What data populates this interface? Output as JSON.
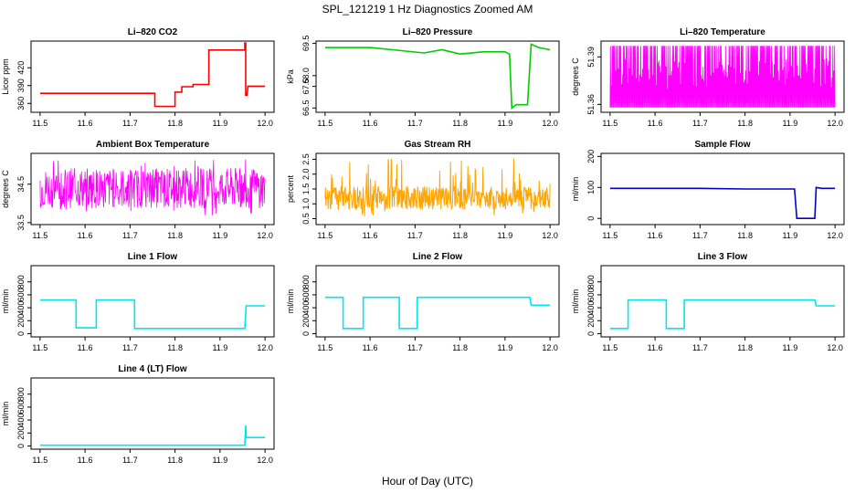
{
  "figure": {
    "title": "SPL_121219  1 Hz Diagnostics Zoomed AM",
    "xlabel": "Hour of Day (UTC)"
  },
  "chart_data": [
    {
      "type": "line",
      "title": "Li–820 CO2",
      "ylabel": "Licor ppm",
      "color": "#ff0000",
      "xlim": [
        11.48,
        12.02
      ],
      "ylim": [
        345,
        465
      ],
      "x_ticks": [
        "11.5",
        "11.6",
        "11.7",
        "11.8",
        "11.9",
        "12.0"
      ],
      "y_ticks": [
        "360",
        "390",
        "420"
      ],
      "points": [
        [
          11.5,
          377
        ],
        [
          11.755,
          377
        ],
        [
          11.755,
          355
        ],
        [
          11.8,
          355
        ],
        [
          11.8,
          379
        ],
        [
          11.815,
          379
        ],
        [
          11.815,
          388
        ],
        [
          11.84,
          388
        ],
        [
          11.84,
          392
        ],
        [
          11.875,
          392
        ],
        [
          11.875,
          450
        ],
        [
          11.955,
          450
        ],
        [
          11.955,
          462
        ],
        [
          11.957,
          462
        ],
        [
          11.957,
          374
        ],
        [
          11.96,
          374
        ],
        [
          11.962,
          389
        ],
        [
          12.0,
          389
        ]
      ]
    },
    {
      "type": "line",
      "title": "Li–820 Pressure",
      "ylabel": "kPa",
      "color": "#00cc00",
      "xlim": [
        11.48,
        12.02
      ],
      "ylim": [
        66.3,
        69.6
      ],
      "x_ticks": [
        "11.5",
        "11.6",
        "11.7",
        "11.8",
        "11.9",
        "12.0"
      ],
      "y_ticks": [
        "66.5",
        "67.5",
        "68.0",
        "69.5"
      ],
      "points": [
        [
          11.5,
          69.3
        ],
        [
          11.6,
          69.3
        ],
        [
          11.65,
          69.2
        ],
        [
          11.72,
          69.05
        ],
        [
          11.76,
          69.2
        ],
        [
          11.8,
          69.0
        ],
        [
          11.85,
          69.1
        ],
        [
          11.9,
          69.1
        ],
        [
          11.91,
          69.0
        ],
        [
          11.915,
          66.5
        ],
        [
          11.925,
          66.65
        ],
        [
          11.95,
          66.65
        ],
        [
          11.958,
          69.45
        ],
        [
          11.975,
          69.3
        ],
        [
          12.0,
          69.2
        ]
      ]
    },
    {
      "type": "line",
      "title": "Li–820 Temperature",
      "ylabel": "degrees C",
      "color": "#ff00ff",
      "xlim": [
        11.48,
        12.02
      ],
      "ylim": [
        51.355,
        51.4
      ],
      "x_ticks": [
        "11.5",
        "11.6",
        "11.7",
        "11.8",
        "11.9",
        "12.0"
      ],
      "y_ticks": [
        "51.36",
        "51.39"
      ],
      "band": [
        51.358,
        51.397
      ]
    },
    {
      "type": "line",
      "title": "Ambient Box Temperature",
      "ylabel": "degrees C",
      "color": "#ff00ff",
      "xlim": [
        11.48,
        12.02
      ],
      "ylim": [
        33.45,
        35.3
      ],
      "x_ticks": [
        "11.5",
        "11.6",
        "11.7",
        "11.8",
        "11.9",
        "12.0"
      ],
      "y_ticks": [
        "33.5",
        "34.5"
      ],
      "band": [
        33.65,
        35.15
      ]
    },
    {
      "type": "line",
      "title": "Gas Stream RH",
      "ylabel": "percent",
      "color": "#ffa500",
      "xlim": [
        11.48,
        12.02
      ],
      "ylim": [
        0.3,
        2.7
      ],
      "x_ticks": [
        "11.5",
        "11.6",
        "11.7",
        "11.8",
        "11.9",
        "12.0"
      ],
      "y_ticks": [
        "0.5",
        "1.0",
        "1.5",
        "2.0",
        "2.5"
      ],
      "band": [
        0.8,
        1.6
      ]
    },
    {
      "type": "line",
      "title": "Sample Flow",
      "ylabel": "ml/min",
      "color": "#0000cc",
      "xlim": [
        11.48,
        12.02
      ],
      "ylim": [
        -20,
        210
      ],
      "x_ticks": [
        "11.5",
        "11.6",
        "11.7",
        "11.8",
        "11.9",
        "12.0"
      ],
      "y_ticks": [
        "0",
        "100",
        "200"
      ],
      "points": [
        [
          11.5,
          97
        ],
        [
          11.6,
          97
        ],
        [
          11.7,
          97
        ],
        [
          11.8,
          95
        ],
        [
          11.91,
          95
        ],
        [
          11.915,
          0
        ],
        [
          11.955,
          0
        ],
        [
          11.958,
          100
        ],
        [
          11.97,
          97
        ],
        [
          12.0,
          97
        ]
      ]
    },
    {
      "type": "line",
      "title": "Line 1 Flow",
      "ylabel": "ml/min",
      "color": "#00e5ee",
      "xlim": [
        11.48,
        12.02
      ],
      "ylim": [
        -50,
        1050
      ],
      "x_ticks": [
        "11.5",
        "11.6",
        "11.7",
        "11.8",
        "11.9",
        "12.0"
      ],
      "y_ticks": [
        "0",
        "200",
        "400",
        "600",
        "800"
      ],
      "points": [
        [
          11.5,
          520
        ],
        [
          11.58,
          520
        ],
        [
          11.58,
          90
        ],
        [
          11.625,
          90
        ],
        [
          11.625,
          520
        ],
        [
          11.71,
          520
        ],
        [
          11.71,
          80
        ],
        [
          11.955,
          80
        ],
        [
          11.958,
          430
        ],
        [
          12.0,
          430
        ]
      ]
    },
    {
      "type": "line",
      "title": "Line 2 Flow",
      "ylabel": "ml/min",
      "color": "#00e5ee",
      "xlim": [
        11.48,
        12.02
      ],
      "ylim": [
        -50,
        1050
      ],
      "x_ticks": [
        "11.5",
        "11.6",
        "11.7",
        "11.8",
        "11.9",
        "12.0"
      ],
      "y_ticks": [
        "0",
        "200",
        "400",
        "600",
        "800"
      ],
      "points": [
        [
          11.5,
          560
        ],
        [
          11.54,
          560
        ],
        [
          11.54,
          80
        ],
        [
          11.585,
          80
        ],
        [
          11.585,
          560
        ],
        [
          11.665,
          560
        ],
        [
          11.665,
          80
        ],
        [
          11.705,
          80
        ],
        [
          11.705,
          560
        ],
        [
          11.955,
          560
        ],
        [
          11.958,
          440
        ],
        [
          12.0,
          440
        ]
      ]
    },
    {
      "type": "line",
      "title": "Line 3 Flow",
      "ylabel": "ml/min",
      "color": "#00e5ee",
      "xlim": [
        11.48,
        12.02
      ],
      "ylim": [
        -50,
        1050
      ],
      "x_ticks": [
        "11.5",
        "11.6",
        "11.7",
        "11.8",
        "11.9",
        "12.0"
      ],
      "y_ticks": [
        "0",
        "200",
        "400",
        "600",
        "800"
      ],
      "points": [
        [
          11.5,
          80
        ],
        [
          11.54,
          80
        ],
        [
          11.54,
          520
        ],
        [
          11.625,
          520
        ],
        [
          11.625,
          80
        ],
        [
          11.665,
          80
        ],
        [
          11.665,
          520
        ],
        [
          11.955,
          520
        ],
        [
          11.958,
          430
        ],
        [
          12.0,
          430
        ]
      ]
    },
    {
      "type": "line",
      "title": "Line 4 (LT) Flow",
      "ylabel": "ml/min",
      "color": "#00e5ee",
      "xlim": [
        11.48,
        12.02
      ],
      "ylim": [
        -50,
        1050
      ],
      "x_ticks": [
        "11.5",
        "11.6",
        "11.7",
        "11.8",
        "11.9",
        "12.0"
      ],
      "y_ticks": [
        "0",
        "200",
        "400",
        "600",
        "800"
      ],
      "points": [
        [
          11.5,
          10
        ],
        [
          11.955,
          10
        ],
        [
          11.957,
          320
        ],
        [
          11.958,
          130
        ],
        [
          12.0,
          130
        ]
      ]
    }
  ]
}
